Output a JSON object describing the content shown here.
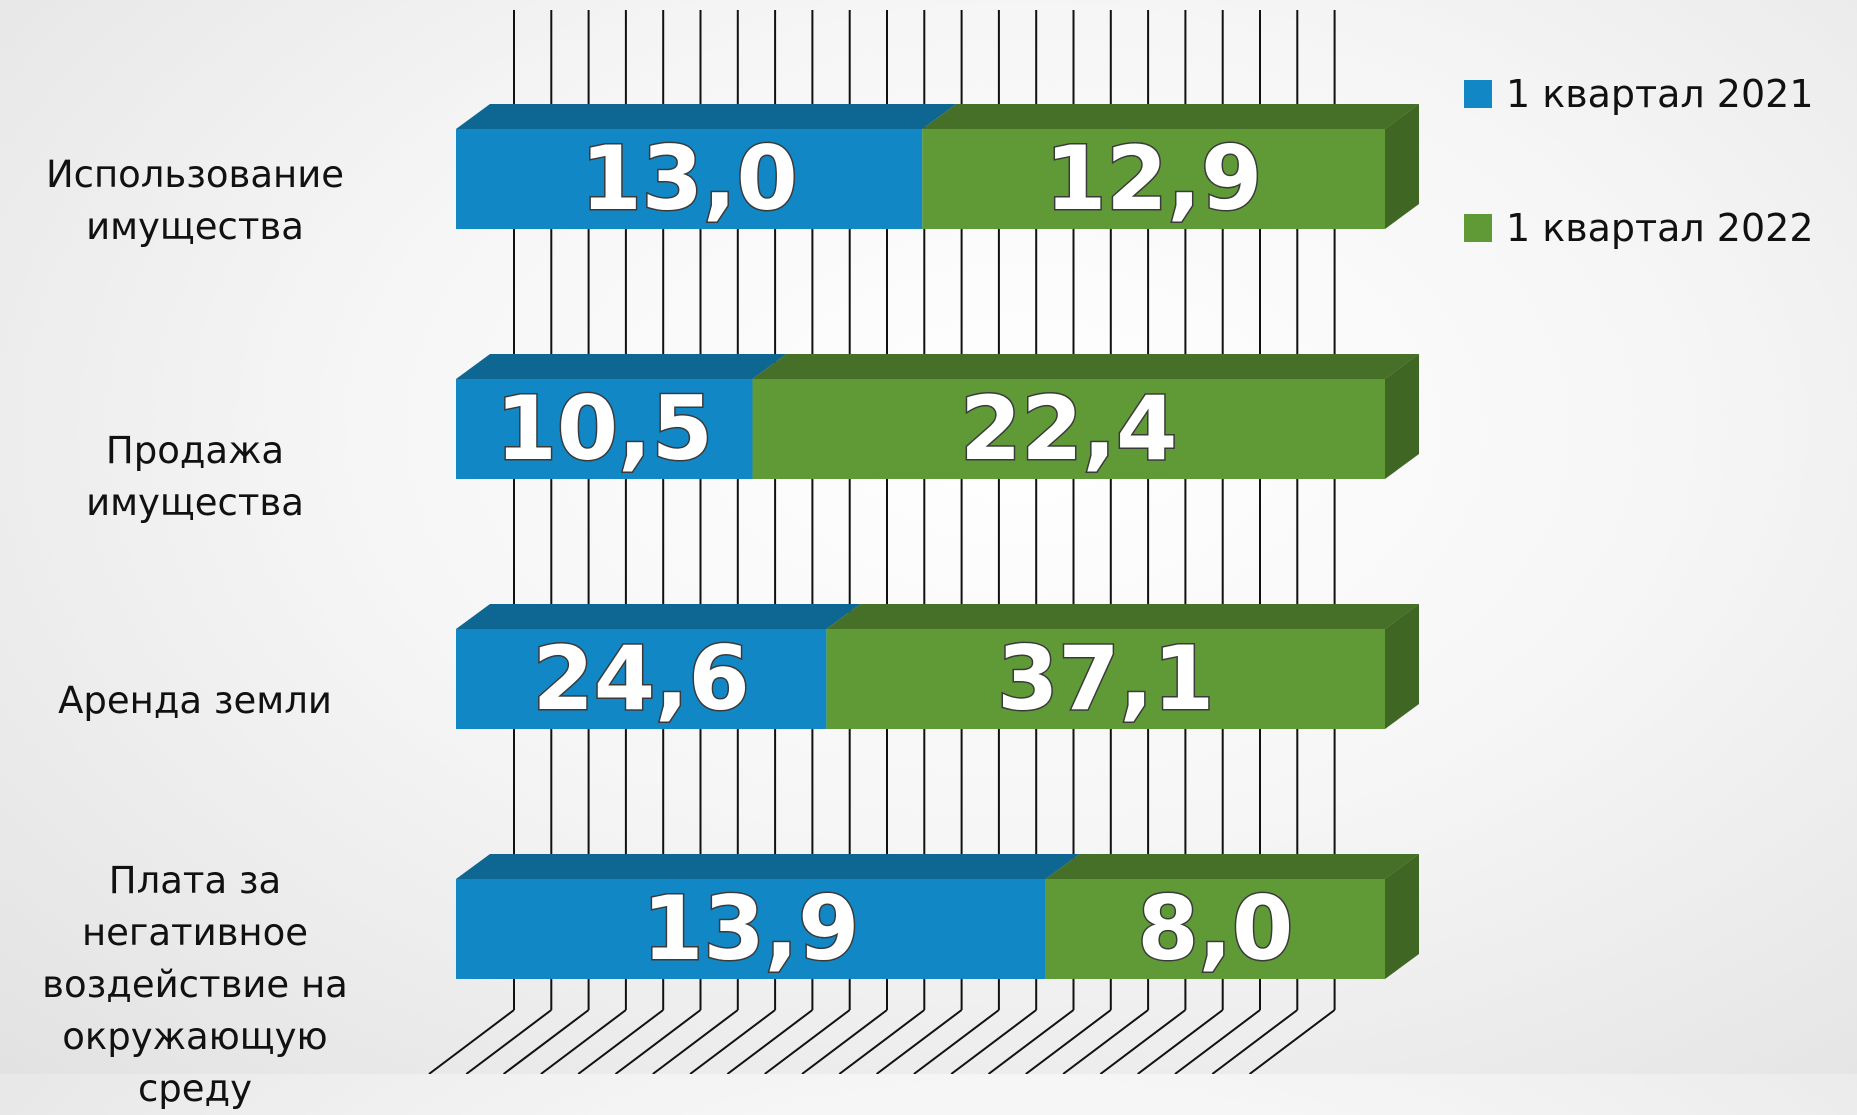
{
  "chart_data": {
    "type": "bar",
    "orientation": "horizontal",
    "stacked": true,
    "three_d": true,
    "categories": [
      "Использование имущества",
      "Продажа имущества",
      "Аренда земли",
      "Плата за негативное воздействие на окружающую среду"
    ],
    "category_label_lines": [
      [
        "Использование",
        "имущества"
      ],
      [
        "Продажа имущества"
      ],
      [
        "Аренда земли"
      ],
      [
        "Плата за негативное",
        "воздействие на",
        "окружающую среду"
      ]
    ],
    "series": [
      {
        "name": "1 квартал 2021",
        "color": "#1287c6",
        "values": [
          13.0,
          10.5,
          24.6,
          13.9
        ],
        "labels": [
          "13,0",
          "10,5",
          "24,6",
          "13,9"
        ]
      },
      {
        "name": "1 квартал 2022",
        "color": "#5f9a36",
        "values": [
          12.9,
          22.4,
          37.1,
          8.0
        ],
        "labels": [
          "12,9",
          "22,4",
          "37,1",
          "8,0"
        ]
      }
    ],
    "percent_of_total": true,
    "grid": true,
    "legend_position": "top-right",
    "colors": {
      "side_2021": "#0f6d9e",
      "top_2021": "#0e6793",
      "side_2022": "#3f6723",
      "top_2022": "#466f28",
      "grid": "#111111"
    }
  }
}
